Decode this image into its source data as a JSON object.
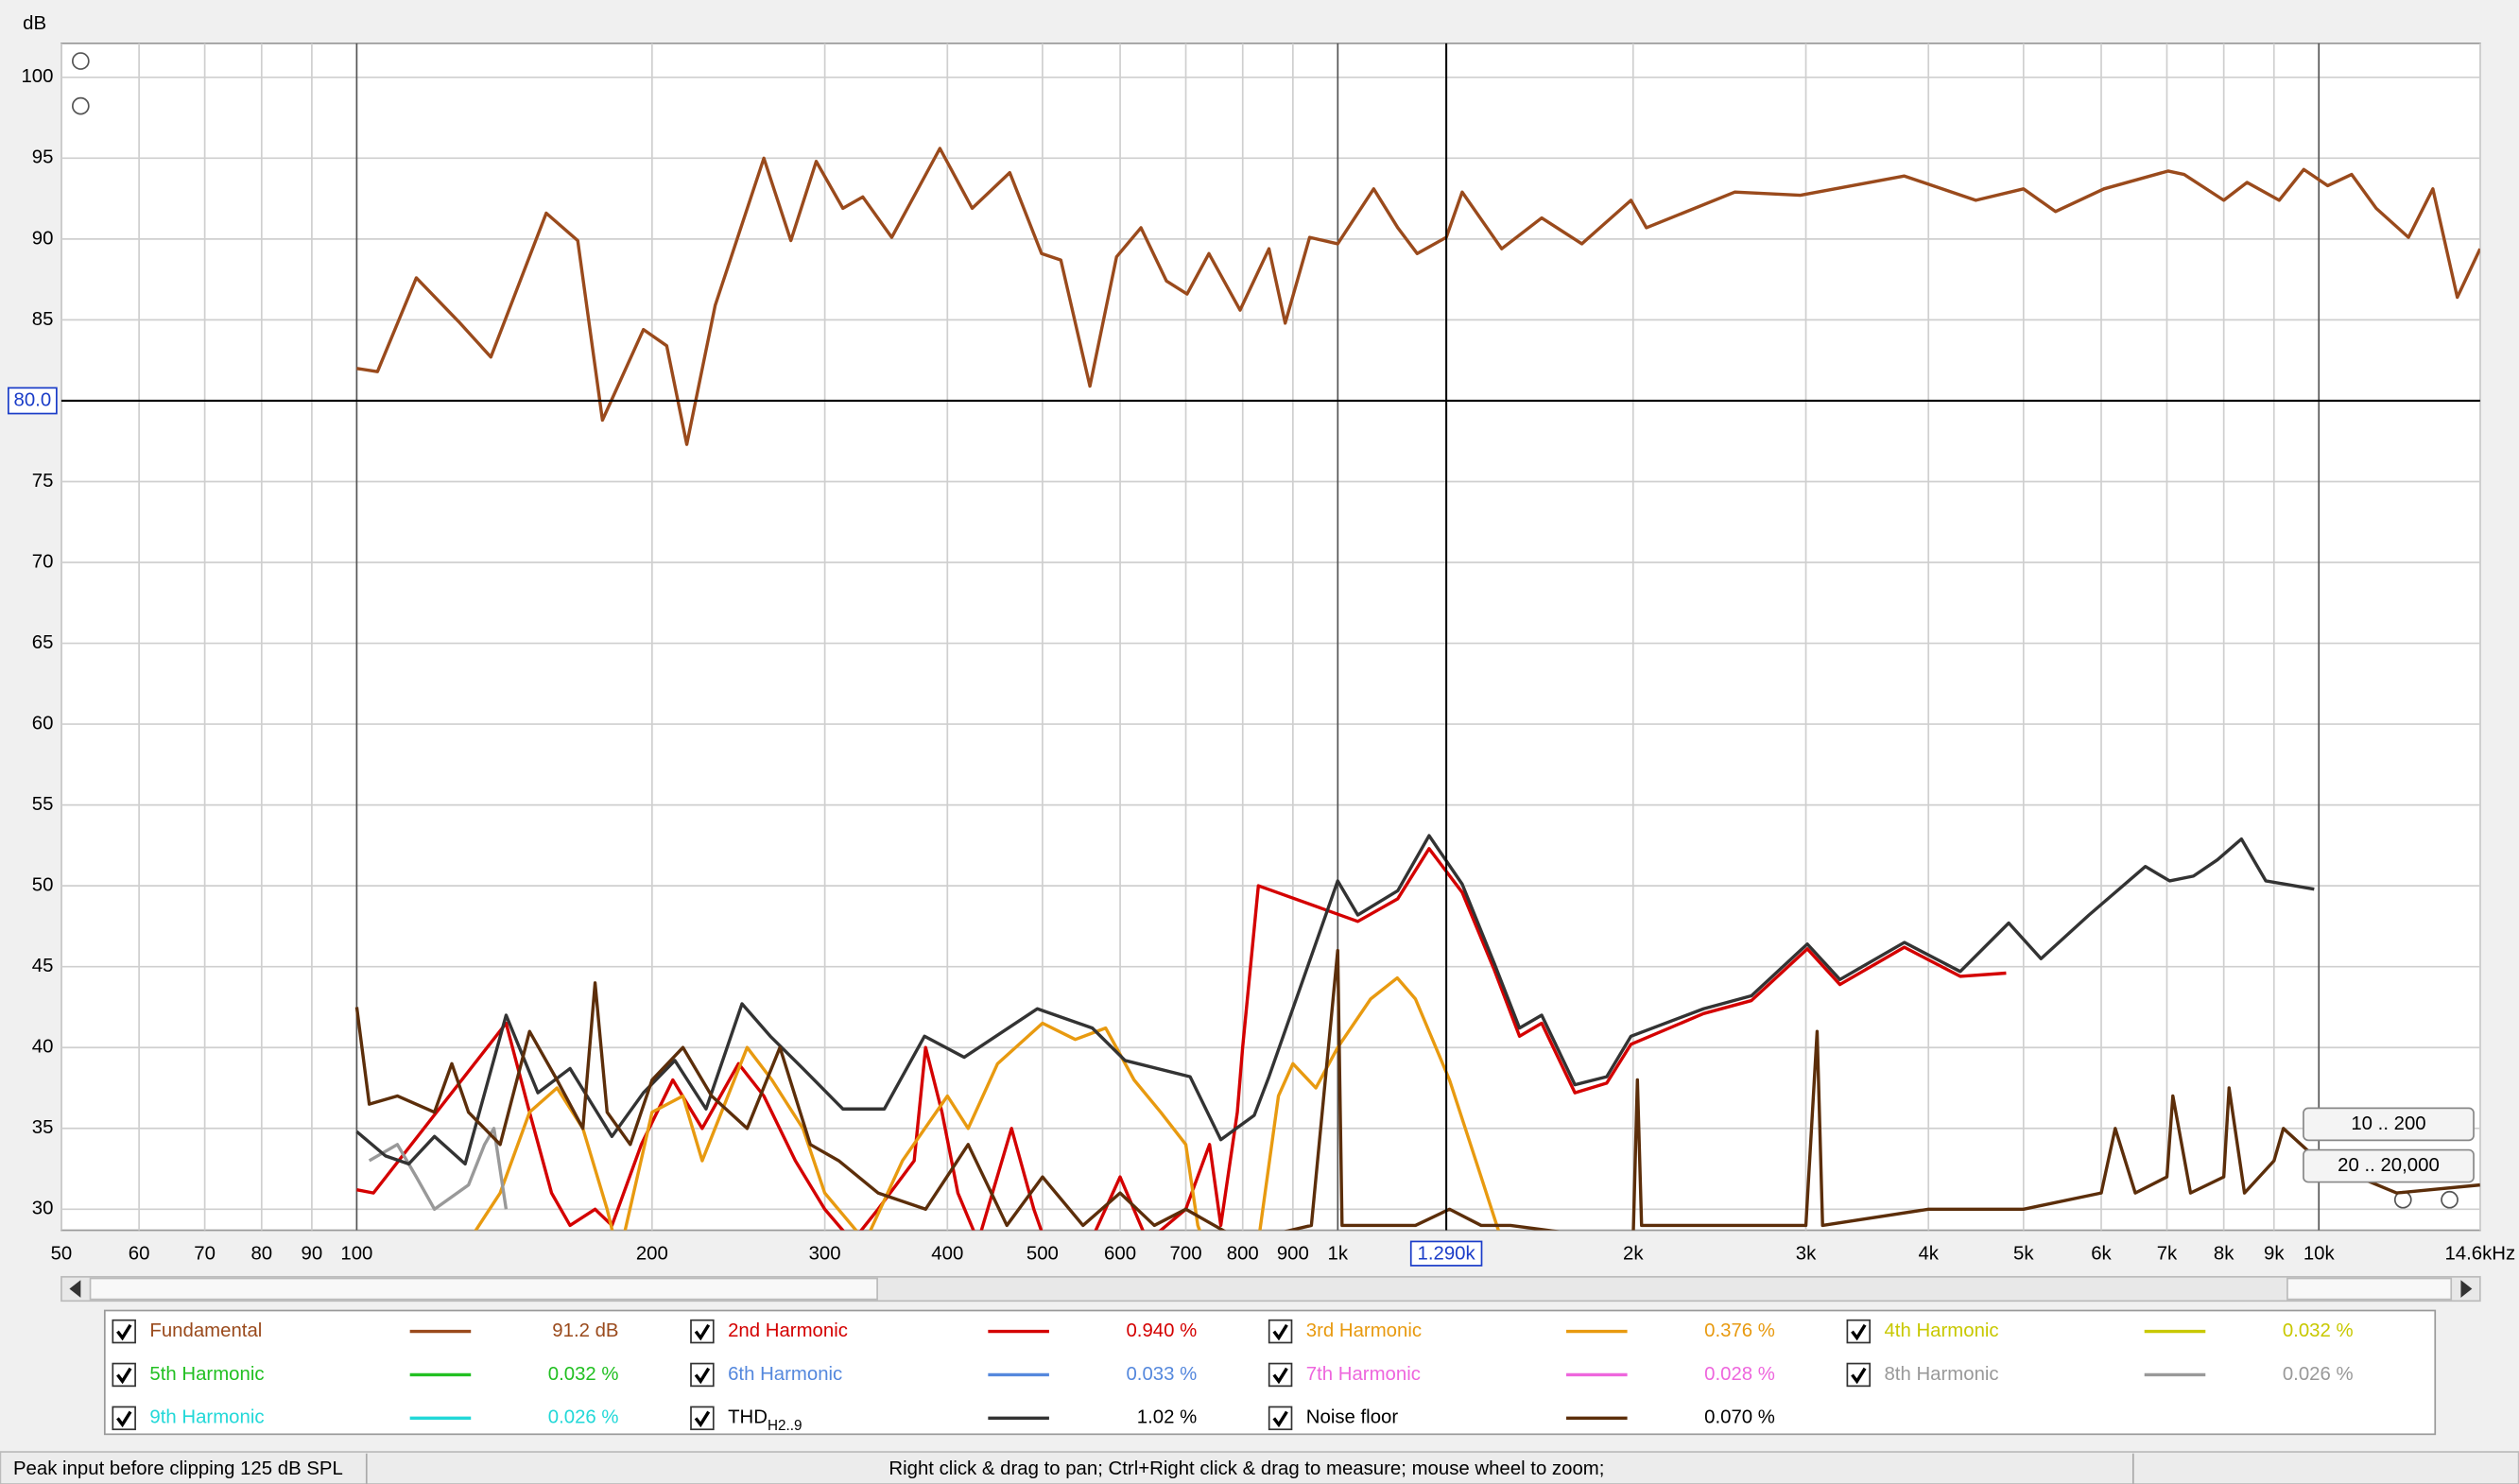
{
  "chart_data": {
    "type": "line",
    "xscale": "log",
    "grid": true,
    "y_label": "dB",
    "xlim": [
      50,
      14600
    ],
    "ylim": [
      28.7,
      102.1
    ],
    "xticks": [
      50,
      60,
      70,
      80,
      90,
      100,
      200,
      300,
      400,
      500,
      600,
      700,
      800,
      900,
      {
        "value": 1000,
        "label": "1k"
      },
      {
        "value": 2000,
        "label": "2k"
      },
      {
        "value": 3000,
        "label": "3k"
      },
      {
        "value": 4000,
        "label": "4k"
      },
      {
        "value": 5000,
        "label": "5k"
      },
      {
        "value": 6000,
        "label": "6k"
      },
      {
        "value": 7000,
        "label": "7k"
      },
      {
        "value": 8000,
        "label": "8k"
      },
      {
        "value": 9000,
        "label": "9k"
      },
      {
        "value": 10000,
        "label": "10k"
      },
      {
        "value": 14600,
        "label": "14.6kHz"
      }
    ],
    "yticks": [
      30,
      35,
      40,
      45,
      50,
      55,
      60,
      65,
      70,
      75,
      80,
      85,
      90,
      95,
      100
    ],
    "cursor": {
      "x": {
        "value": 1290,
        "label": "1.290k"
      },
      "y": {
        "value": 80,
        "label": "80.0"
      }
    },
    "series": [
      {
        "name": "Fundamental",
        "color": "#9a4a1c",
        "readout": "91.2 dB",
        "x": [
          100,
          105,
          115,
          127,
          137,
          156,
          168,
          178,
          196,
          207,
          217,
          232,
          260,
          277,
          294,
          313,
          328,
          351,
          393,
          424,
          463,
          499,
          522,
          559,
          595,
          630,
          669,
          702,
          739,
          795,
          851,
          884,
          936,
          1000,
          1088,
          1151,
          1205,
          1290,
          1339,
          1469,
          1614,
          1773,
          1990,
          2063,
          2540,
          2960,
          3780,
          4470,
          5000,
          5390,
          6040,
          7020,
          7290,
          8000,
          8450,
          9110,
          9650,
          10210,
          10800,
          11440,
          12340,
          13070,
          13840,
          14600
        ],
        "values": [
          82.0,
          81.8,
          87.6,
          84.9,
          82.7,
          91.6,
          89.9,
          78.8,
          84.4,
          83.4,
          77.3,
          85.9,
          95.0,
          89.9,
          94.8,
          91.9,
          92.6,
          90.1,
          95.6,
          91.9,
          94.1,
          89.1,
          88.7,
          80.9,
          88.9,
          90.7,
          87.4,
          86.6,
          89.1,
          85.6,
          89.4,
          84.8,
          90.1,
          89.7,
          93.1,
          90.7,
          89.1,
          90.1,
          92.9,
          89.4,
          91.3,
          89.7,
          92.4,
          90.7,
          92.9,
          92.7,
          93.9,
          92.4,
          93.1,
          91.7,
          93.1,
          94.2,
          94.0,
          92.4,
          93.5,
          92.4,
          94.3,
          93.3,
          94.0,
          91.9,
          90.1,
          93.1,
          86.4,
          89.4
        ]
      },
      {
        "name": "2nd Harmonic",
        "color": "#d40000",
        "readout": "0.940 %",
        "x": [
          100,
          104,
          142,
          150,
          158,
          165,
          175,
          182,
          195,
          210,
          225,
          245,
          260,
          280,
          300,
          320,
          340,
          370,
          380,
          395,
          410,
          430,
          465,
          490,
          510,
          560,
          600,
          640,
          700,
          740,
          760,
          790,
          800,
          830,
          1048,
          1151,
          1239,
          1339,
          1444,
          1532,
          1614,
          1745,
          1880,
          1990,
          2360,
          2640,
          3010,
          3250,
          3780,
          4310,
          4800
        ],
        "values": [
          31.2,
          31.0,
          41.5,
          36.0,
          31.0,
          29.0,
          30.0,
          29.0,
          34.0,
          38.0,
          35.0,
          39.0,
          37.0,
          33.0,
          30.0,
          28.0,
          30.0,
          33.0,
          40.0,
          36.0,
          31.0,
          28.0,
          35.0,
          30.0,
          27.0,
          28.0,
          32.0,
          28.0,
          30.0,
          34.0,
          29.0,
          36.0,
          40.0,
          50.0,
          47.8,
          49.2,
          52.3,
          49.6,
          44.8,
          40.7,
          41.5,
          37.2,
          37.8,
          40.2,
          42.1,
          42.9,
          46.1,
          43.9,
          46.2,
          44.4,
          44.6
        ]
      },
      {
        "name": "3rd Harmonic",
        "color": "#e89a10",
        "readout": "0.376 %",
        "x": [
          130,
          140,
          150,
          160,
          170,
          180,
          185,
          200,
          215,
          225,
          250,
          265,
          285,
          300,
          330,
          360,
          400,
          420,
          450,
          500,
          540,
          580,
          620,
          660,
          700,
          720,
          740,
          830,
          870,
          900,
          950,
          1000,
          1080,
          1150,
          1200,
          1300,
          1400,
          1470
        ],
        "values": [
          28.0,
          31.0,
          36.0,
          37.5,
          35.0,
          30.0,
          27.0,
          36.0,
          37.0,
          33.0,
          40.0,
          38.0,
          35.0,
          31.0,
          28.0,
          33.0,
          37.0,
          35.0,
          39.0,
          41.5,
          40.5,
          41.2,
          38.0,
          36.0,
          34.0,
          29.0,
          27.0,
          28.0,
          37.0,
          39.0,
          37.5,
          40.0,
          43.0,
          44.3,
          43.0,
          38.0,
          32.0,
          28.0
        ]
      },
      {
        "name": "4th Harmonic",
        "color": "#c8c800",
        "readout": "0.032 %",
        "x": [],
        "values": []
      },
      {
        "name": "5th Harmonic",
        "color": "#22c022",
        "readout": "0.032 %",
        "x": [],
        "values": []
      },
      {
        "name": "6th Harmonic",
        "color": "#5588dd",
        "readout": "0.033 %",
        "x": [],
        "values": []
      },
      {
        "name": "7th Harmonic",
        "color": "#ee66dd",
        "readout": "0.028 %",
        "x": [],
        "values": []
      },
      {
        "name": "8th Harmonic",
        "color": "#999999",
        "readout": "0.026 %",
        "x": [
          103,
          110,
          115,
          120,
          130,
          135,
          138,
          142
        ],
        "values": [
          33.0,
          34.0,
          32.0,
          30.0,
          31.5,
          34.0,
          35.0,
          30.0
        ]
      },
      {
        "name": "9th Harmonic",
        "color": "#22d8d8",
        "readout": "0.026 %",
        "x": [],
        "values": []
      },
      {
        "name": "THD",
        "name_sub": "H2..9",
        "color": "#333333",
        "readout": "1.02 %",
        "x": [
          100,
          107,
          113,
          120,
          129,
          142,
          153,
          165,
          182,
          196,
          211,
          227,
          247,
          264,
          285,
          313,
          345,
          379,
          416,
          494,
          562,
          607,
          707,
          760,
          822,
          851,
          1000,
          1048,
          1151,
          1239,
          1339,
          1444,
          1532,
          1614,
          1745,
          1880,
          1990,
          2360,
          2640,
          3010,
          3250,
          3780,
          4310,
          4830,
          5210,
          5830,
          6655,
          7045,
          7450,
          7880,
          8340,
          8830,
          9890
        ],
        "values": [
          34.8,
          33.3,
          32.8,
          34.5,
          32.8,
          42.0,
          37.2,
          38.7,
          34.5,
          37.2,
          39.2,
          36.2,
          42.7,
          40.7,
          38.7,
          36.2,
          36.2,
          40.7,
          39.4,
          42.4,
          41.2,
          39.2,
          38.2,
          34.3,
          35.8,
          38.2,
          50.3,
          48.2,
          49.7,
          53.1,
          50.1,
          45.2,
          41.2,
          42.0,
          37.7,
          38.2,
          40.7,
          42.4,
          43.2,
          46.4,
          44.2,
          46.5,
          44.7,
          47.7,
          45.5,
          48.2,
          51.2,
          50.3,
          50.6,
          51.6,
          52.9,
          50.3,
          49.8
        ]
      },
      {
        "name": "Noise floor",
        "color": "#5c2e0a",
        "readout": "0.070 %",
        "x": [
          100,
          103,
          110,
          120,
          125,
          130,
          140,
          150,
          160,
          170,
          175,
          180,
          190,
          200,
          215,
          230,
          250,
          270,
          290,
          310,
          340,
          380,
          420,
          460,
          500,
          550,
          600,
          650,
          700,
          800,
          940,
          1000,
          1010,
          1100,
          1200,
          1300,
          1400,
          1500,
          2000,
          2020,
          2040,
          2500,
          3000,
          3080,
          3120,
          4000,
          5000,
          6000,
          6200,
          6500,
          7000,
          7100,
          7400,
          8000,
          8100,
          8400,
          9000,
          9200,
          10000,
          12000,
          14600
        ],
        "values": [
          42.5,
          36.5,
          37.0,
          36.0,
          39.0,
          36.0,
          34.0,
          41.0,
          38.0,
          35.0,
          44.0,
          36.0,
          34.0,
          38.0,
          40.0,
          37.0,
          35.0,
          40.0,
          34.0,
          33.0,
          31.0,
          30.0,
          34.0,
          29.0,
          32.0,
          29.0,
          31.0,
          29.0,
          30.0,
          28.0,
          29.0,
          46.0,
          29.0,
          29.0,
          29.0,
          30.0,
          29.0,
          29.0,
          28.0,
          38.0,
          29.0,
          29.0,
          29.0,
          41.0,
          29.0,
          30.0,
          30.0,
          31.0,
          35.0,
          31.0,
          32.0,
          37.0,
          31.0,
          32.0,
          37.5,
          31.0,
          33.0,
          35.0,
          33.0,
          31.0,
          31.5
        ]
      }
    ]
  },
  "range_buttons": [
    "10 .. 200",
    "20 .. 20,000"
  ],
  "status_bar": {
    "left": "Peak input before clipping 125 dB SPL",
    "center": "Right click & drag to pan; Ctrl+Right click & drag to measure; mouse wheel to zoom;"
  }
}
